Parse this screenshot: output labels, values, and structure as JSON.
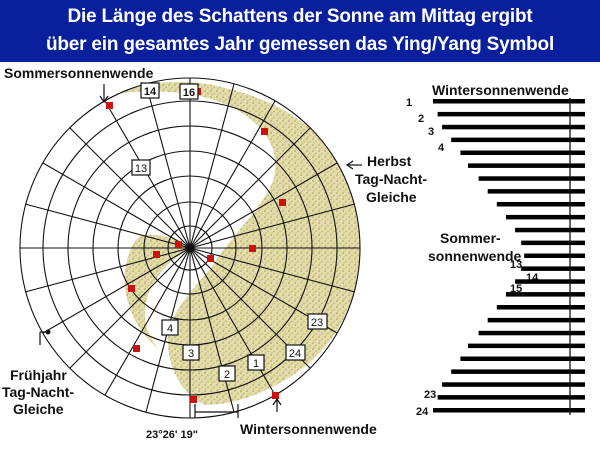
{
  "title": {
    "line1": "Die Länge des Schattens der Sonne am Mittag ergibt",
    "line2": "über ein gesamtes Jahr gemessen das Ying/Yang Symbol"
  },
  "circle_diagram": {
    "labels": {
      "summer_solstice": "Sommersonnenwende",
      "autumn_line1": "Herbst",
      "autumn_line2": "Tag-Nacht-",
      "autumn_line3": "Gleiche",
      "spring_line1": "Frühjahr",
      "spring_line2": "Tag-Nacht-",
      "spring_line3": "Gleiche",
      "winter_solstice": "Wintersonnenwende",
      "angle": "23°26' 19\""
    },
    "boxed_numbers": [
      "14",
      "16",
      "13",
      "4",
      "3",
      "2",
      "1",
      "24",
      "23"
    ]
  },
  "bar_chart": {
    "top_label": "Wintersonnenwende",
    "summer_label_line1": "Sommer-",
    "summer_label_line2": "sonnenwende",
    "row_labels": [
      "1",
      "2",
      "3",
      "4",
      "13",
      "14",
      "15",
      "23",
      "24"
    ],
    "lengths": [
      1.0,
      0.97,
      0.94,
      0.88,
      0.82,
      0.77,
      0.7,
      0.64,
      0.58,
      0.52,
      0.46,
      0.42,
      0.4,
      0.42,
      0.46,
      0.52,
      0.58,
      0.64,
      0.7,
      0.77,
      0.82,
      0.88,
      0.94,
      0.97,
      1.0
    ]
  },
  "colors": {
    "banner": "#0a1f9c",
    "shading": "#d8cf97",
    "marker": "#cc1111"
  }
}
